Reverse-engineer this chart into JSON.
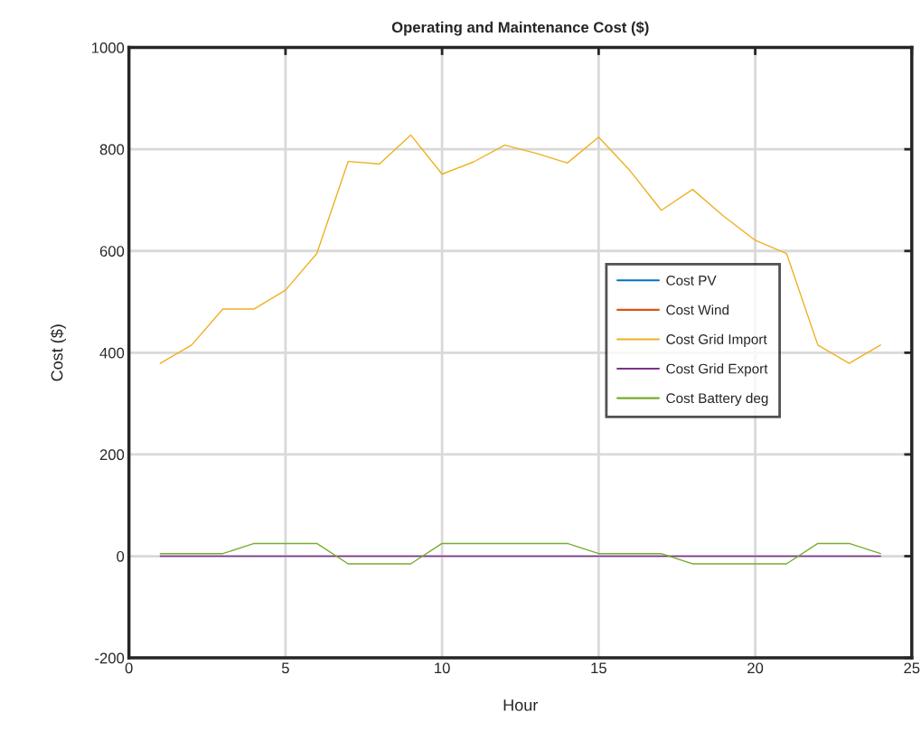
{
  "chart_data": {
    "type": "line",
    "title": "Operating and Maintenance Cost ($)",
    "xlabel": "Hour",
    "ylabel": "Cost ($)",
    "x": [
      1,
      2,
      3,
      4,
      5,
      6,
      7,
      8,
      9,
      10,
      11,
      12,
      13,
      14,
      15,
      16,
      17,
      18,
      19,
      20,
      21,
      22,
      23,
      24
    ],
    "series": [
      {
        "name": "Cost PV",
        "color": "#0072bd",
        "values": [
          null,
          null,
          null,
          null,
          null,
          null,
          null,
          null,
          null,
          null,
          null,
          null,
          null,
          null,
          null,
          null,
          null,
          null,
          null,
          null,
          null,
          null,
          null,
          null
        ]
      },
      {
        "name": "Cost Wind",
        "color": "#d95319",
        "values": [
          null,
          null,
          null,
          null,
          null,
          null,
          null,
          null,
          null,
          null,
          null,
          null,
          null,
          null,
          null,
          null,
          null,
          null,
          null,
          null,
          null,
          null,
          null,
          null
        ]
      },
      {
        "name": "Cost Grid Import",
        "color": "#edb120",
        "values": [
          379,
          415,
          486,
          486,
          523,
          595,
          776,
          771,
          828,
          751,
          775,
          808,
          792,
          773,
          824,
          758,
          680,
          721,
          668,
          621,
          595,
          415,
          379,
          415
        ]
      },
      {
        "name": "Cost Grid Export",
        "color": "#7e2f8e",
        "values": [
          0,
          0,
          0,
          0,
          0,
          0,
          0,
          0,
          0,
          0,
          0,
          0,
          0,
          0,
          0,
          0,
          0,
          0,
          0,
          0,
          0,
          0,
          0,
          0
        ]
      },
      {
        "name": "Cost Battery deg",
        "color": "#77ac30",
        "values": [
          5,
          5,
          5,
          25,
          25,
          25,
          -15,
          -15,
          -15,
          25,
          25,
          25,
          25,
          25,
          5,
          5,
          5,
          -15,
          -15,
          -15,
          -15,
          25,
          25,
          5
        ]
      }
    ],
    "xlim": [
      0,
      25
    ],
    "xticks": [
      0,
      5,
      10,
      15,
      20,
      25
    ],
    "ylim": [
      -200,
      1000
    ],
    "yticks": [
      -200,
      0,
      200,
      400,
      600,
      800,
      1000
    ],
    "grid": true,
    "legend": "right",
    "marker": "none",
    "line_style": "solid"
  }
}
